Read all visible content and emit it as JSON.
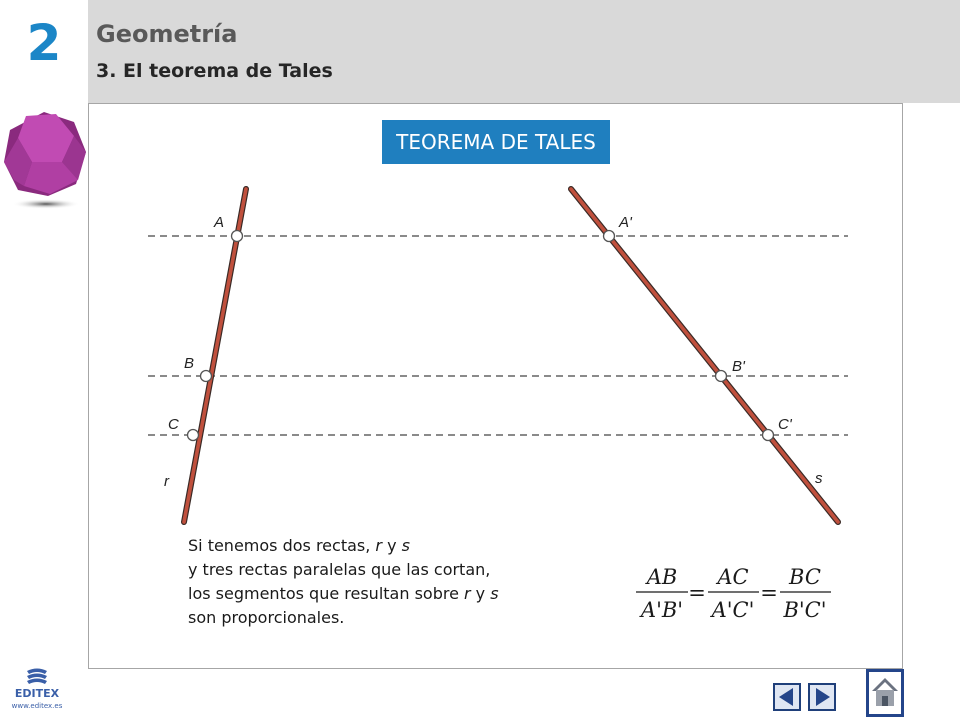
{
  "header": {
    "chapter_number": "2",
    "title": "Geometría",
    "subtitle": "3. El teorema de Tales"
  },
  "badge": {
    "label": "TEOREMA DE TALES",
    "color": "#1f7fbf"
  },
  "diagram": {
    "line_color": "#c0503d",
    "points_r": [
      "A",
      "B",
      "C"
    ],
    "points_s": [
      "A'",
      "B'",
      "C'"
    ],
    "line_r_label": "r",
    "line_s_label": "s"
  },
  "explanation": {
    "line1_pre": "Si tenemos dos rectas, ",
    "var_r": "r",
    "line1_mid": " y ",
    "var_s": "s",
    "line2": "y tres rectas paralelas que las cortan,",
    "line3_pre": "los segmentos que resultan sobre ",
    "line3_mid": " y ",
    "line4": "son proporcionales."
  },
  "formula": {
    "num1": "AB",
    "den1": "A'B'",
    "num2": "AC",
    "den2": "A'C'",
    "num3": "BC",
    "den3": "B'C'",
    "equals": "="
  },
  "footer": {
    "logo_text": "EDITEX",
    "logo_url": "www.editex.es",
    "accent": "#3a5fa8",
    "nav_icons": [
      "prev-icon",
      "next-icon",
      "home-icon"
    ]
  }
}
